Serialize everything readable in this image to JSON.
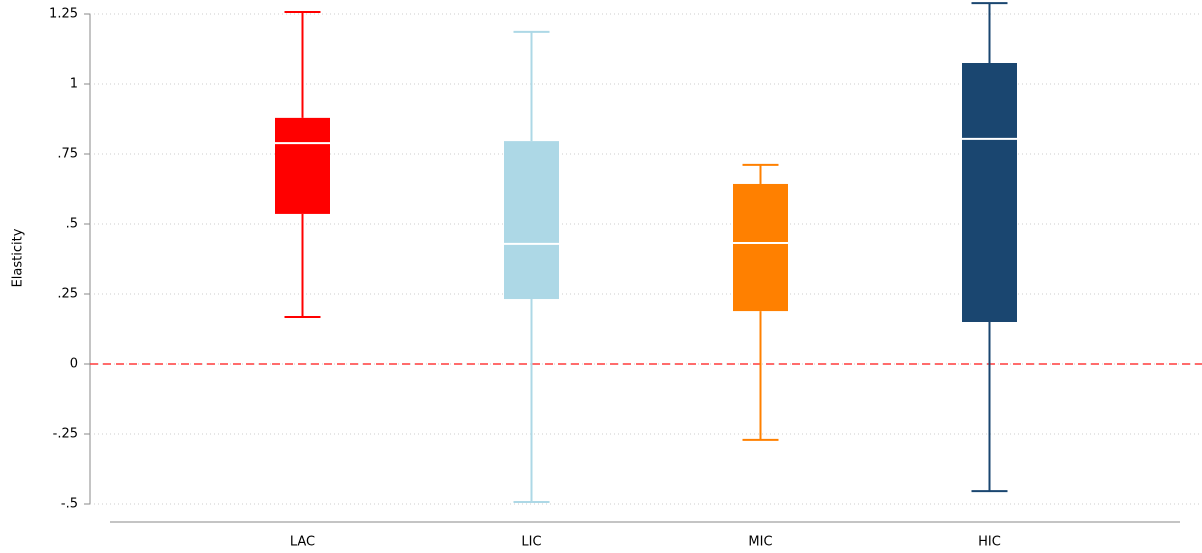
{
  "chart_data": {
    "type": "box",
    "ylabel": "Elasticity",
    "ylim": [
      -0.5,
      1.3
    ],
    "yticks": [
      {
        "value": -0.5,
        "label": "-.5"
      },
      {
        "value": -0.25,
        "label": "-.25"
      },
      0,
      {
        "value": 0.25,
        "label": ".25"
      },
      {
        "value": 0.5,
        "label": ".5"
      },
      {
        "value": 0.75,
        "label": ".75"
      },
      1,
      1.25
    ],
    "grid": true,
    "reference_line": 0,
    "reference_line_color": "#ff3b3b",
    "boxes": [
      {
        "category": "LAC",
        "color": "#ff0000",
        "whisker_low": 0.168,
        "q1": 0.536,
        "median": 0.789,
        "q3": 0.879,
        "whisker_high": 1.257
      },
      {
        "category": "LIC",
        "color": "#add8e6",
        "whisker_low": -0.493,
        "q1": 0.232,
        "median": 0.429,
        "q3": 0.796,
        "whisker_high": 1.186
      },
      {
        "category": "MIC",
        "color": "#ff8000",
        "whisker_low": -0.271,
        "q1": 0.189,
        "median": 0.432,
        "q3": 0.643,
        "whisker_high": 0.711
      },
      {
        "category": "HIC",
        "color": "#1a4670",
        "whisker_low": -0.454,
        "q1": 0.15,
        "median": 0.804,
        "q3": 1.075,
        "whisker_high": 1.289
      }
    ]
  }
}
